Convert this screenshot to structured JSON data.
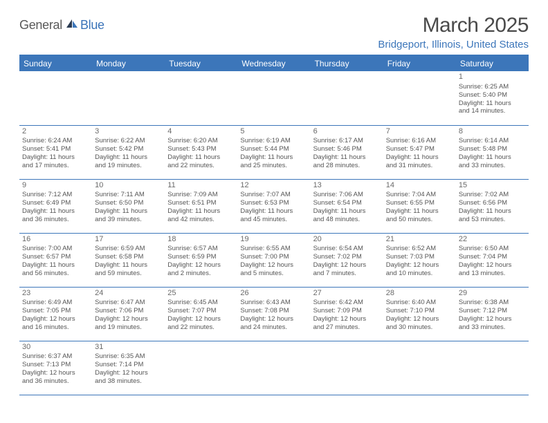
{
  "logo": {
    "part1": "General",
    "part2": "Blue"
  },
  "title": "March 2025",
  "location": "Bridgeport, Illinois, United States",
  "colors": {
    "header_bg": "#3c76ba",
    "header_text": "#ffffff",
    "border": "#3c76ba",
    "body_text": "#555555",
    "title_text": "#4a4a4a",
    "location_text": "#3c76ba",
    "logo_gray": "#595959",
    "logo_blue": "#3b74b9",
    "background": "#ffffff"
  },
  "typography": {
    "title_fontsize": 30,
    "location_fontsize": 15,
    "header_fontsize": 12,
    "daynum_fontsize": 11,
    "detail_fontsize": 9.5,
    "font_family": "Arial"
  },
  "dayHeaders": [
    "Sunday",
    "Monday",
    "Tuesday",
    "Wednesday",
    "Thursday",
    "Friday",
    "Saturday"
  ],
  "weeks": [
    [
      null,
      null,
      null,
      null,
      null,
      null,
      {
        "n": "1",
        "sr": "Sunrise: 6:25 AM",
        "ss": "Sunset: 5:40 PM",
        "d1": "Daylight: 11 hours",
        "d2": "and 14 minutes."
      }
    ],
    [
      {
        "n": "2",
        "sr": "Sunrise: 6:24 AM",
        "ss": "Sunset: 5:41 PM",
        "d1": "Daylight: 11 hours",
        "d2": "and 17 minutes."
      },
      {
        "n": "3",
        "sr": "Sunrise: 6:22 AM",
        "ss": "Sunset: 5:42 PM",
        "d1": "Daylight: 11 hours",
        "d2": "and 19 minutes."
      },
      {
        "n": "4",
        "sr": "Sunrise: 6:20 AM",
        "ss": "Sunset: 5:43 PM",
        "d1": "Daylight: 11 hours",
        "d2": "and 22 minutes."
      },
      {
        "n": "5",
        "sr": "Sunrise: 6:19 AM",
        "ss": "Sunset: 5:44 PM",
        "d1": "Daylight: 11 hours",
        "d2": "and 25 minutes."
      },
      {
        "n": "6",
        "sr": "Sunrise: 6:17 AM",
        "ss": "Sunset: 5:46 PM",
        "d1": "Daylight: 11 hours",
        "d2": "and 28 minutes."
      },
      {
        "n": "7",
        "sr": "Sunrise: 6:16 AM",
        "ss": "Sunset: 5:47 PM",
        "d1": "Daylight: 11 hours",
        "d2": "and 31 minutes."
      },
      {
        "n": "8",
        "sr": "Sunrise: 6:14 AM",
        "ss": "Sunset: 5:48 PM",
        "d1": "Daylight: 11 hours",
        "d2": "and 33 minutes."
      }
    ],
    [
      {
        "n": "9",
        "sr": "Sunrise: 7:12 AM",
        "ss": "Sunset: 6:49 PM",
        "d1": "Daylight: 11 hours",
        "d2": "and 36 minutes."
      },
      {
        "n": "10",
        "sr": "Sunrise: 7:11 AM",
        "ss": "Sunset: 6:50 PM",
        "d1": "Daylight: 11 hours",
        "d2": "and 39 minutes."
      },
      {
        "n": "11",
        "sr": "Sunrise: 7:09 AM",
        "ss": "Sunset: 6:51 PM",
        "d1": "Daylight: 11 hours",
        "d2": "and 42 minutes."
      },
      {
        "n": "12",
        "sr": "Sunrise: 7:07 AM",
        "ss": "Sunset: 6:53 PM",
        "d1": "Daylight: 11 hours",
        "d2": "and 45 minutes."
      },
      {
        "n": "13",
        "sr": "Sunrise: 7:06 AM",
        "ss": "Sunset: 6:54 PM",
        "d1": "Daylight: 11 hours",
        "d2": "and 48 minutes."
      },
      {
        "n": "14",
        "sr": "Sunrise: 7:04 AM",
        "ss": "Sunset: 6:55 PM",
        "d1": "Daylight: 11 hours",
        "d2": "and 50 minutes."
      },
      {
        "n": "15",
        "sr": "Sunrise: 7:02 AM",
        "ss": "Sunset: 6:56 PM",
        "d1": "Daylight: 11 hours",
        "d2": "and 53 minutes."
      }
    ],
    [
      {
        "n": "16",
        "sr": "Sunrise: 7:00 AM",
        "ss": "Sunset: 6:57 PM",
        "d1": "Daylight: 11 hours",
        "d2": "and 56 minutes."
      },
      {
        "n": "17",
        "sr": "Sunrise: 6:59 AM",
        "ss": "Sunset: 6:58 PM",
        "d1": "Daylight: 11 hours",
        "d2": "and 59 minutes."
      },
      {
        "n": "18",
        "sr": "Sunrise: 6:57 AM",
        "ss": "Sunset: 6:59 PM",
        "d1": "Daylight: 12 hours",
        "d2": "and 2 minutes."
      },
      {
        "n": "19",
        "sr": "Sunrise: 6:55 AM",
        "ss": "Sunset: 7:00 PM",
        "d1": "Daylight: 12 hours",
        "d2": "and 5 minutes."
      },
      {
        "n": "20",
        "sr": "Sunrise: 6:54 AM",
        "ss": "Sunset: 7:02 PM",
        "d1": "Daylight: 12 hours",
        "d2": "and 7 minutes."
      },
      {
        "n": "21",
        "sr": "Sunrise: 6:52 AM",
        "ss": "Sunset: 7:03 PM",
        "d1": "Daylight: 12 hours",
        "d2": "and 10 minutes."
      },
      {
        "n": "22",
        "sr": "Sunrise: 6:50 AM",
        "ss": "Sunset: 7:04 PM",
        "d1": "Daylight: 12 hours",
        "d2": "and 13 minutes."
      }
    ],
    [
      {
        "n": "23",
        "sr": "Sunrise: 6:49 AM",
        "ss": "Sunset: 7:05 PM",
        "d1": "Daylight: 12 hours",
        "d2": "and 16 minutes."
      },
      {
        "n": "24",
        "sr": "Sunrise: 6:47 AM",
        "ss": "Sunset: 7:06 PM",
        "d1": "Daylight: 12 hours",
        "d2": "and 19 minutes."
      },
      {
        "n": "25",
        "sr": "Sunrise: 6:45 AM",
        "ss": "Sunset: 7:07 PM",
        "d1": "Daylight: 12 hours",
        "d2": "and 22 minutes."
      },
      {
        "n": "26",
        "sr": "Sunrise: 6:43 AM",
        "ss": "Sunset: 7:08 PM",
        "d1": "Daylight: 12 hours",
        "d2": "and 24 minutes."
      },
      {
        "n": "27",
        "sr": "Sunrise: 6:42 AM",
        "ss": "Sunset: 7:09 PM",
        "d1": "Daylight: 12 hours",
        "d2": "and 27 minutes."
      },
      {
        "n": "28",
        "sr": "Sunrise: 6:40 AM",
        "ss": "Sunset: 7:10 PM",
        "d1": "Daylight: 12 hours",
        "d2": "and 30 minutes."
      },
      {
        "n": "29",
        "sr": "Sunrise: 6:38 AM",
        "ss": "Sunset: 7:12 PM",
        "d1": "Daylight: 12 hours",
        "d2": "and 33 minutes."
      }
    ],
    [
      {
        "n": "30",
        "sr": "Sunrise: 6:37 AM",
        "ss": "Sunset: 7:13 PM",
        "d1": "Daylight: 12 hours",
        "d2": "and 36 minutes."
      },
      {
        "n": "31",
        "sr": "Sunrise: 6:35 AM",
        "ss": "Sunset: 7:14 PM",
        "d1": "Daylight: 12 hours",
        "d2": "and 38 minutes."
      },
      null,
      null,
      null,
      null,
      null
    ]
  ]
}
